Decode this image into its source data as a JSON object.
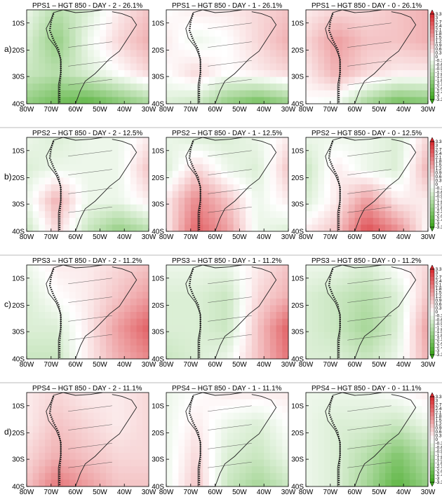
{
  "figure": {
    "rows": [
      {
        "label": "a)",
        "panels": [
          {
            "title": "PPS1 – HGT 850 - DAY - 2 - 26.1%",
            "field": [
              [
                -0.3,
                -1.2,
                -0.6,
                0.3,
                0.9
              ],
              [
                -0.6,
                -1.8,
                -0.3,
                0.6,
                1.2
              ],
              [
                -0.9,
                -1.2,
                -0.6,
                0.0,
                0.6
              ],
              [
                -1.8,
                -2.4,
                -2.7,
                -2.1,
                -1.5
              ]
            ]
          },
          {
            "title": "PPS1 – HGT 850 - DAY - 1 - 26.1%",
            "field": [
              [
                0.0,
                0.3,
                0.3,
                0.6,
                0.9
              ],
              [
                0.3,
                -0.3,
                0.0,
                0.6,
                1.2
              ],
              [
                0.0,
                0.6,
                0.0,
                0.3,
                0.6
              ],
              [
                -0.6,
                -0.9,
                -1.8,
                -2.4,
                -1.8
              ]
            ]
          },
          {
            "title": "PPS1 – HGT 850 - DAY - 0 - 26.1%",
            "field": [
              [
                0.3,
                0.6,
                0.6,
                0.9,
                1.2
              ],
              [
                0.6,
                1.5,
                0.9,
                0.9,
                1.2
              ],
              [
                0.3,
                1.2,
                0.6,
                0.3,
                0.3
              ],
              [
                0.0,
                -0.3,
                -1.5,
                -2.4,
                -2.1
              ]
            ]
          }
        ]
      },
      {
        "label": "b)",
        "panels": [
          {
            "title": "PPS2 – HGT 850 - DAY - 2 - 12.5%",
            "field": [
              [
                -0.3,
                -0.6,
                -0.3,
                -0.3,
                0.3
              ],
              [
                -0.6,
                -0.3,
                -0.3,
                -0.3,
                0.9
              ],
              [
                -0.3,
                1.2,
                -0.3,
                -0.3,
                0.3
              ],
              [
                -0.9,
                0.6,
                -0.9,
                -1.8,
                -1.2
              ]
            ]
          },
          {
            "title": "PPS2 – HGT 850 - DAY - 1 - 12.5%",
            "field": [
              [
                -0.3,
                -0.6,
                -0.6,
                -0.3,
                0.3
              ],
              [
                -0.6,
                0.6,
                -0.3,
                -0.6,
                0.9
              ],
              [
                0.3,
                1.8,
                0.9,
                -0.3,
                0.3
              ],
              [
                0.3,
                2.4,
                1.5,
                -0.3,
                -0.6
              ]
            ]
          },
          {
            "title": "PPS2 – HGT 850 - DAY - 0 - 12.5%",
            "field": [
              [
                -0.3,
                -0.3,
                -0.3,
                -0.6,
                0.6
              ],
              [
                -0.9,
                0.3,
                -0.3,
                -0.6,
                1.2
              ],
              [
                -0.6,
                0.3,
                1.5,
                0.3,
                0.3
              ],
              [
                0.3,
                0.9,
                2.7,
                1.8,
                0.0
              ]
            ]
          }
        ]
      },
      {
        "label": "c)",
        "panels": [
          {
            "title": "PPS3 – HGT 850 - DAY - 2 - 11.2%",
            "field": [
              [
                -0.3,
                0.3,
                0.3,
                0.6,
                0.9
              ],
              [
                -0.6,
                0.0,
                0.3,
                0.9,
                1.5
              ],
              [
                -0.6,
                -0.6,
                0.3,
                1.5,
                2.4
              ],
              [
                -0.9,
                -0.9,
                0.3,
                1.2,
                1.8
              ]
            ]
          },
          {
            "title": "PPS3 – HGT 850 - DAY - 1 - 11.2%",
            "field": [
              [
                -0.3,
                -0.3,
                -0.3,
                0.3,
                0.9
              ],
              [
                -0.6,
                -0.6,
                -0.9,
                0.6,
                1.2
              ],
              [
                -0.6,
                -0.6,
                -0.9,
                0.9,
                2.4
              ],
              [
                -0.9,
                -0.6,
                -0.3,
                0.9,
                2.1
              ]
            ]
          },
          {
            "title": "PPS3 – HGT 850 - DAY - 0 - 11.2%",
            "field": [
              [
                -0.3,
                -0.3,
                -0.6,
                0.0,
                0.6
              ],
              [
                -0.6,
                -0.9,
                -1.2,
                -0.6,
                0.9
              ],
              [
                -0.6,
                -0.9,
                -1.5,
                -0.6,
                1.5
              ],
              [
                -0.6,
                -0.6,
                -0.9,
                -0.3,
                1.2
              ]
            ]
          }
        ]
      },
      {
        "label": "d)",
        "panels": [
          {
            "title": "PPS4 – HGT 850 - DAY - 2 - 11.1%",
            "field": [
              [
                0.3,
                0.6,
                0.3,
                0.3,
                0.6
              ],
              [
                0.3,
                0.9,
                0.6,
                0.3,
                0.6
              ],
              [
                0.6,
                1.2,
                0.9,
                0.6,
                0.6
              ],
              [
                0.9,
                2.1,
                1.5,
                0.9,
                0.9
              ]
            ]
          },
          {
            "title": "PPS4 – HGT 850 - DAY - 1 - 11.1%",
            "field": [
              [
                -0.3,
                0.0,
                0.3,
                0.3,
                0.3
              ],
              [
                -0.3,
                0.3,
                -0.3,
                -0.6,
                0.0
              ],
              [
                -0.3,
                0.6,
                -0.6,
                -0.9,
                -0.3
              ],
              [
                -0.3,
                0.9,
                -0.9,
                -1.5,
                -0.9
              ]
            ]
          },
          {
            "title": "PPS4 – HGT 850 - DAY - 0 - 11.1%",
            "field": [
              [
                -0.3,
                -0.3,
                -0.3,
                0.0,
                0.3
              ],
              [
                -0.3,
                -0.6,
                -0.6,
                -0.9,
                -0.3
              ],
              [
                -0.3,
                -0.6,
                -1.2,
                -2.1,
                -1.2
              ],
              [
                -0.3,
                -0.6,
                -1.5,
                -2.7,
                -1.8
              ]
            ]
          }
        ]
      }
    ],
    "lat_labels": [
      "10S",
      "20S",
      "30S",
      "40S"
    ],
    "lon_labels": [
      "80W",
      "70W",
      "60W",
      "50W",
      "40W",
      "30W"
    ],
    "colorbar": {
      "labels": [
        "3.3",
        "3",
        "2.7",
        "2.4",
        "2.1",
        "1.8",
        "1.5",
        "1.2",
        "0.9",
        "0.6",
        "0.3",
        "0",
        "-0.3",
        "-0.6",
        "-0.9",
        "-1.2",
        "-1.5",
        "-1.8",
        "-2.1",
        "-2.4",
        "-2.7",
        "-3",
        "-3.3"
      ],
      "positive_color": "#d7262b",
      "negative_color": "#3aa51a"
    }
  }
}
